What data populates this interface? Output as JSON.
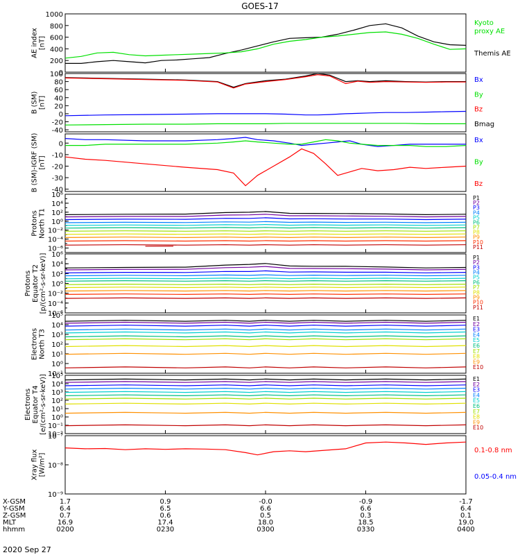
{
  "title": "GOES-17",
  "date_label": "2020 Sep 27",
  "footer": {
    "row_labels": [
      "X-GSM",
      "Y-GSM",
      "Z-GSM",
      "MLT",
      "hhmm"
    ],
    "columns": [
      {
        "values": [
          "1.7",
          "6.4",
          "0.7",
          "16.9",
          "0200"
        ]
      },
      {
        "values": [
          "0.9",
          "6.5",
          "0.6",
          "17.4",
          "0230"
        ]
      },
      {
        "values": [
          "-0.0",
          "6.6",
          "0.5",
          "18.0",
          "0300"
        ]
      },
      {
        "values": [
          "-0.9",
          "6.6",
          "0.3",
          "18.5",
          "0330"
        ]
      },
      {
        "values": [
          "-1.7",
          "6.4",
          "0.1",
          "19.0",
          "0400"
        ]
      }
    ]
  },
  "colors": {
    "black": "#000000",
    "green": "#00e000",
    "blue": "#0000ff",
    "red": "#ff0000",
    "P": [
      "#000000",
      "#7000a0",
      "#0000ff",
      "#0080ff",
      "#00d0d0",
      "#00c080",
      "#a0e000",
      "#e0e000",
      "#ff9000",
      "#ff3000",
      "#c00000"
    ],
    "E": [
      "#000000",
      "#7000a0",
      "#0000ff",
      "#0080ff",
      "#00d0d0",
      "#00c080",
      "#a0e000",
      "#e0e000",
      "#ff9000",
      "#c00000"
    ]
  },
  "chart_data": [
    {
      "id": "ae",
      "type": "line",
      "ylabel_lines": [
        "AE index",
        "[nT]"
      ],
      "ylim": [
        0,
        1000
      ],
      "yticks": [
        "1000",
        "800",
        "600",
        "400",
        "200",
        "0"
      ],
      "legend": [
        {
          "text": "Kyoto",
          "color": "#00e000"
        },
        {
          "text": "proxy AE",
          "color": "#00e000"
        },
        {
          "text": "Themis AE",
          "color": "#000000"
        }
      ],
      "x": [
        0,
        0.04,
        0.08,
        0.12,
        0.16,
        0.2,
        0.24,
        0.28,
        0.32,
        0.36,
        0.4,
        0.44,
        0.48,
        0.52,
        0.56,
        0.6,
        0.64,
        0.68,
        0.72,
        0.76,
        0.8,
        0.84,
        0.88,
        0.92,
        0.96,
        1
      ],
      "series": [
        {
          "name": "Themis AE",
          "color": "#000000",
          "values": [
            150,
            150,
            180,
            200,
            180,
            160,
            200,
            210,
            230,
            250,
            320,
            380,
            450,
            520,
            580,
            590,
            600,
            650,
            720,
            800,
            830,
            760,
            620,
            520,
            470,
            460
          ]
        },
        {
          "name": "Kyoto proxy AE",
          "color": "#00e000",
          "values": [
            240,
            270,
            330,
            340,
            300,
            280,
            290,
            300,
            310,
            320,
            330,
            350,
            400,
            480,
            530,
            560,
            600,
            620,
            650,
            680,
            690,
            650,
            580,
            480,
            390,
            400
          ]
        }
      ]
    },
    {
      "id": "bsm",
      "type": "line",
      "ylabel_lines": [
        "B (SM)",
        "[nT]"
      ],
      "ylim": [
        -45,
        100
      ],
      "yticks": [
        "100",
        "80",
        "60",
        "40",
        "20",
        "0",
        "-20",
        "-40"
      ],
      "legend": [
        {
          "text": "Bx",
          "color": "#0000ff"
        },
        {
          "text": "By",
          "color": "#00e000"
        },
        {
          "text": "Bz",
          "color": "#ff0000"
        },
        {
          "text": "Bmag",
          "color": "#000000"
        }
      ],
      "x": [
        0,
        0.1,
        0.2,
        0.3,
        0.38,
        0.42,
        0.45,
        0.5,
        0.55,
        0.6,
        0.63,
        0.66,
        0.7,
        0.73,
        0.76,
        0.8,
        0.85,
        0.9,
        0.95,
        1
      ],
      "series": [
        {
          "name": "Bmag",
          "color": "#000000",
          "values": [
            90,
            88,
            86,
            84,
            80,
            66,
            75,
            82,
            86,
            94,
            100,
            96,
            80,
            82,
            80,
            82,
            80,
            79,
            80,
            80
          ]
        },
        {
          "name": "Bz",
          "color": "#ff0000",
          "values": [
            89,
            87,
            85,
            83,
            79,
            64,
            74,
            80,
            85,
            92,
            97,
            94,
            75,
            81,
            78,
            80,
            79,
            78,
            79,
            79
          ]
        },
        {
          "name": "Bx",
          "color": "#0000ff",
          "values": [
            -5,
            -3,
            -2,
            -1,
            0,
            0,
            0,
            0,
            -1,
            -3,
            -3,
            -2,
            0,
            1,
            2,
            3,
            3,
            4,
            5,
            6
          ]
        },
        {
          "name": "By",
          "color": "#00e000",
          "values": [
            -28,
            -27,
            -26,
            -26,
            -25,
            -25,
            -25,
            -25,
            -24,
            -24,
            -24,
            -24,
            -24,
            -24,
            -24,
            -24,
            -24,
            -25,
            -25,
            -25
          ]
        }
      ]
    },
    {
      "id": "bigrf",
      "type": "line",
      "ylabel_lines": [
        "B (SM)-IGRF (SM)",
        "[nT]"
      ],
      "ylim": [
        -42,
        8
      ],
      "yticks": [
        "0",
        "-10",
        "-20",
        "-30",
        "-40"
      ],
      "legend": [
        {
          "text": "Bx",
          "color": "#0000ff"
        },
        {
          "text": "By",
          "color": "#00e000"
        },
        {
          "text": "Bz",
          "color": "#ff0000"
        }
      ],
      "x": [
        0,
        0.05,
        0.1,
        0.2,
        0.3,
        0.38,
        0.42,
        0.45,
        0.48,
        0.52,
        0.56,
        0.59,
        0.62,
        0.65,
        0.68,
        0.71,
        0.74,
        0.78,
        0.82,
        0.86,
        0.9,
        0.95,
        1
      ],
      "series": [
        {
          "name": "Bx",
          "color": "#0000ff",
          "values": [
            4,
            3,
            3,
            2,
            2,
            3,
            4,
            5,
            3,
            2,
            0,
            -2,
            -1,
            0,
            1,
            2,
            -1,
            -3,
            -2,
            -1,
            -1,
            -1,
            -1
          ]
        },
        {
          "name": "By",
          "color": "#00e000",
          "values": [
            -2,
            -2,
            -1,
            -1,
            -1,
            0,
            1,
            2,
            1,
            0,
            -1,
            -1,
            1,
            3,
            2,
            0,
            -1,
            -2,
            -2,
            -2,
            -3,
            -3,
            -2
          ]
        },
        {
          "name": "Bz",
          "color": "#ff0000",
          "values": [
            -12,
            -14,
            -15,
            -18,
            -21,
            -23,
            -26,
            -37,
            -28,
            -20,
            -12,
            -5,
            -9,
            -18,
            -28,
            -25,
            -22,
            -24,
            -23,
            -21,
            -22,
            -21,
            -20
          ]
        }
      ]
    },
    {
      "id": "pn",
      "type": "line",
      "log": true,
      "ylabel_lines": [
        "Protons",
        "North T1"
      ],
      "ylim_exp": [
        -7,
        6
      ],
      "ytick_exps": [
        6,
        4,
        2,
        0,
        -2,
        -4,
        -6
      ],
      "channels_prefix": "P",
      "channels_count": 11,
      "levels": [
        1.5,
        1.0,
        0.4,
        -0.3,
        -0.9,
        -1.5,
        -2.2,
        -2.9,
        -3.6,
        -4.4,
        -5.3
      ],
      "bump": [
        0.6,
        0.5,
        0.3,
        0.15,
        0.1,
        0.05,
        0,
        0,
        0,
        0,
        0
      ],
      "segment": {
        "channel": 10,
        "from": 0.2,
        "to": 0.27,
        "level": -5.6
      }
    },
    {
      "id": "pe",
      "type": "line",
      "log": true,
      "ylabel_lines": [
        "Protons",
        "Equator T2",
        "[p/(cm²-s-sr-keV)]"
      ],
      "ylim_exp": [
        -6,
        6
      ],
      "ytick_exps": [
        6,
        4,
        2,
        0,
        -2,
        -4,
        -6
      ],
      "channels_prefix": "P",
      "channels_count": 11,
      "levels": [
        3.2,
        2.8,
        2.2,
        1.6,
        1.0,
        0.5,
        -0.2,
        -0.8,
        -1.5,
        -2.2,
        -3.0
      ],
      "bump": [
        0.8,
        0.6,
        0.3,
        0.1,
        0.05,
        0,
        0,
        0,
        0,
        0,
        0
      ]
    },
    {
      "id": "en",
      "type": "line",
      "log": true,
      "ylabel_lines": [
        "Electrons",
        "North T3"
      ],
      "ylim_exp": [
        -1,
        5
      ],
      "ytick_exps": [
        5,
        4,
        3,
        2,
        1,
        0,
        -1
      ],
      "channels_prefix": "E",
      "channels_count": 10,
      "levels": [
        4.4,
        4.2,
        3.9,
        3.5,
        3.2,
        2.8,
        2.5,
        1.8,
        1.0,
        -0.4
      ],
      "bump": [
        0,
        0,
        0,
        0,
        0,
        0,
        0,
        0,
        0,
        0
      ]
    },
    {
      "id": "ee",
      "type": "line",
      "log": true,
      "ylabel_lines": [
        "Electrons",
        "Equator T4",
        "[e/(cm²-s-sr-keV)]"
      ],
      "ylim_exp": [
        -2,
        5
      ],
      "ytick_exps": [
        5,
        4,
        3,
        2,
        1,
        0,
        -1,
        -2
      ],
      "channels_prefix": "E",
      "channels_count": 10,
      "levels": [
        4.5,
        4.2,
        3.8,
        3.4,
        3.0,
        2.6,
        2.2,
        1.6,
        0.5,
        -1.0
      ],
      "bump": [
        0,
        0,
        0,
        0,
        0,
        0,
        0,
        0,
        0,
        0
      ]
    },
    {
      "id": "xray",
      "type": "line",
      "log": true,
      "ylabel_lines": [
        "Xray flux",
        "[W/m²]"
      ],
      "ylim_exp": [
        -9,
        -7
      ],
      "ytick_exps": [
        -7,
        -8,
        -9
      ],
      "legend": [
        {
          "text": "0.1-0.8 nm",
          "color": "#ff0000"
        },
        {
          "text": "0.05-0.4 nm",
          "color": "#0000ff"
        }
      ],
      "x": [
        0,
        0.05,
        0.1,
        0.15,
        0.2,
        0.25,
        0.3,
        0.35,
        0.4,
        0.45,
        0.48,
        0.52,
        0.56,
        0.6,
        0.65,
        0.7,
        0.75,
        0.8,
        0.85,
        0.9,
        0.95,
        1
      ],
      "series": [
        {
          "name": "0.1-0.8 nm",
          "color": "#ff0000",
          "exps": [
            -7.42,
            -7.45,
            -7.44,
            -7.48,
            -7.45,
            -7.47,
            -7.45,
            -7.46,
            -7.48,
            -7.58,
            -7.66,
            -7.55,
            -7.52,
            -7.55,
            -7.5,
            -7.45,
            -7.25,
            -7.22,
            -7.25,
            -7.3,
            -7.25,
            -7.22
          ]
        }
      ]
    }
  ]
}
